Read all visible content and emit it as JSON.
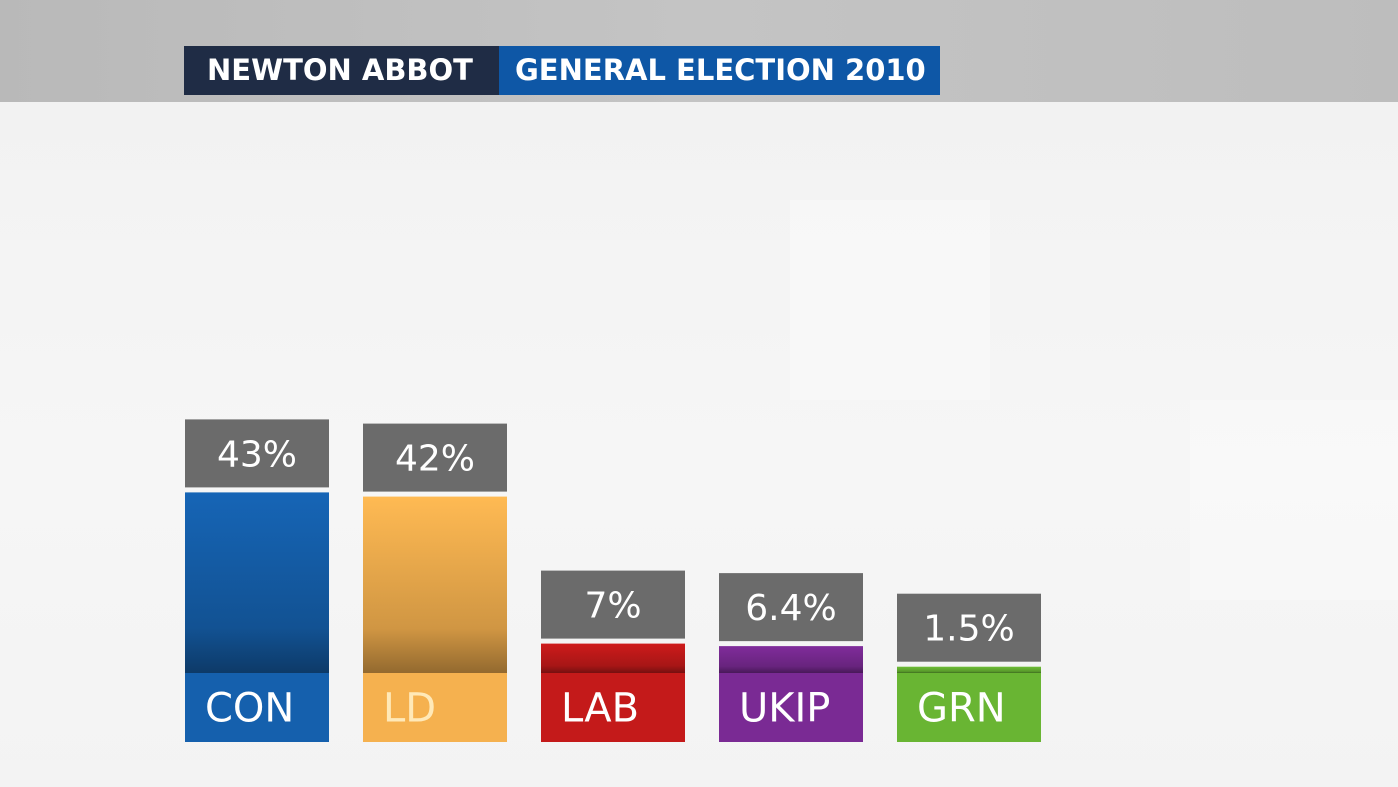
{
  "header": {
    "constituency": "NEWTON ABBOT",
    "election": "GENERAL ELECTION 2010"
  },
  "colors": {
    "header_left_bg": "#1f2c45",
    "header_right_bg": "#0e57a6",
    "value_box_bg": "#6b6b6b"
  },
  "chart_data": {
    "type": "bar",
    "title": "",
    "xlabel": "",
    "ylabel": "",
    "categories": [
      "CON",
      "LD",
      "LAB",
      "UKIP",
      "GRN"
    ],
    "values": [
      43,
      42,
      7,
      6.4,
      1.5
    ],
    "value_labels": [
      "43%",
      "42%",
      "7%",
      "6.4%",
      "1.5%"
    ],
    "colors": [
      "#1560ad",
      "#f5b14f",
      "#c41a1a",
      "#7a2a94",
      "#69b533"
    ],
    "label_colors": [
      "#ffffff",
      "#ffe9b8",
      "#ffffff",
      "#ffffff",
      "#ffffff"
    ],
    "grid": false
  }
}
